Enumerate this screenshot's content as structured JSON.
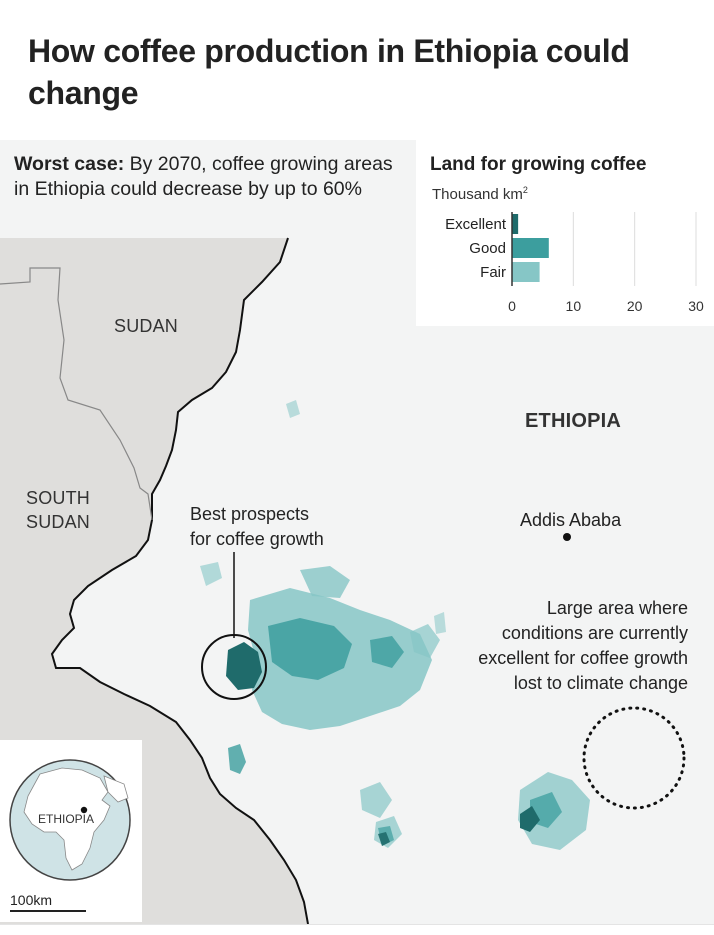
{
  "title": "How coffee production in Ethiopia could change",
  "worst_case": {
    "label": "Worst case:",
    "text": " By 2070, coffee growing areas in Ethiopia could decrease by up to 60%"
  },
  "map": {
    "countries": {
      "sudan": "SUDAN",
      "south_sudan_line1": "SOUTH",
      "south_sudan_line2": "SUDAN",
      "ethiopia": "ETHIOPIA"
    },
    "city": "Addis Ababa",
    "annotations": {
      "best_line1": "Best prospects",
      "best_line2": "for coffee growth",
      "lost_line1": "Large area where",
      "lost_line2": "conditions are currently",
      "lost_line3": "excellent for coffee growth",
      "lost_line4": "lost to climate change"
    },
    "inset_label": "ETHIOPIA",
    "scale_label": "100km"
  },
  "chart_data": {
    "type": "bar",
    "orientation": "horizontal",
    "title": "Land for growing coffee",
    "unit": "Thousand km",
    "unit_sup": "2",
    "categories": [
      "Excellent",
      "Good",
      "Fair"
    ],
    "values": [
      1,
      6,
      4.5
    ],
    "colors": [
      "#1f6b6b",
      "#3c9e9e",
      "#86c6c6"
    ],
    "xlim": [
      0,
      30
    ],
    "xticks": [
      "0",
      "10",
      "20",
      "30"
    ]
  },
  "colors": {
    "land_outside": "#dfdedc",
    "ethiopia": "#f3f4f4",
    "coffee_excellent": "#1f6b6b",
    "coffee_good": "#3c9e9e",
    "coffee_fair": "#86c6c6",
    "border": "#111111"
  }
}
